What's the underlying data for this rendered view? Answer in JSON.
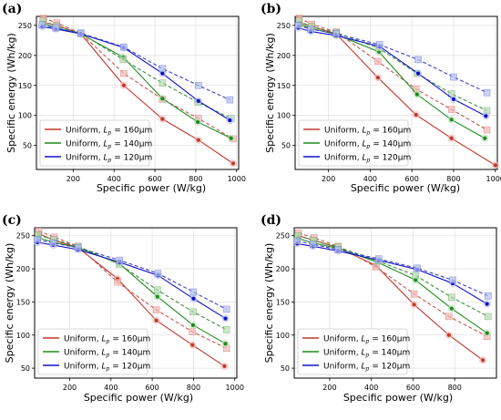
{
  "chart_data": [
    {
      "type": "line",
      "panel_label": "(a)",
      "xlabel": "Specific power (W/kg)",
      "ylabel": "Specific energy (Wh/kg)",
      "xlim": [
        20,
        1010
      ],
      "ylim": [
        10,
        265
      ],
      "xticks": [
        200,
        400,
        600,
        800,
        1000
      ],
      "yticks": [
        50,
        100,
        150,
        200,
        250
      ],
      "grid": true,
      "legend_position": "lower-left",
      "series": [
        {
          "name": "Uniform, Lp = 160μm",
          "legend_prefix": "Uniform, ",
          "legend_sym": "L",
          "legend_sub": "p",
          "legend_rest": " = 160μm",
          "x": [
            55,
            120,
            237,
            448,
            637,
            813,
            983
          ],
          "y": [
            255,
            250,
            236,
            150,
            94,
            59,
            20
          ],
          "dashed": false
        },
        {
          "name": "",
          "x": [
            55,
            120,
            237,
            448,
            637,
            813,
            983
          ],
          "y": [
            262,
            254,
            237,
            170,
            127,
            95,
            61
          ],
          "dashed": true
        },
        {
          "name": "Uniform, Lp = 140μm",
          "legend_prefix": "Uniform, ",
          "legend_sym": "L",
          "legend_sub": "p",
          "legend_rest": " = 140μm",
          "x": [
            52,
            118,
            237,
            445,
            637,
            810,
            973
          ],
          "y": [
            253,
            246,
            236,
            197,
            128,
            89,
            62
          ],
          "dashed": false
        },
        {
          "name": "",
          "x": [
            52,
            118,
            237,
            445,
            637,
            810,
            973
          ],
          "y": [
            257,
            249,
            237,
            193,
            154,
            122,
            95
          ],
          "dashed": true
        },
        {
          "name": "Uniform, Lp = 120μm",
          "legend_prefix": "Uniform, ",
          "legend_sym": "L",
          "legend_sub": "p",
          "legend_rest": " = 120μm",
          "x": [
            48,
            115,
            237,
            447,
            637,
            813,
            967
          ],
          "y": [
            248,
            244,
            236,
            213,
            170,
            124,
            92
          ],
          "dashed": false
        },
        {
          "name": "",
          "x": [
            48,
            115,
            237,
            447,
            637,
            813,
            967
          ],
          "y": [
            251,
            246,
            237,
            214,
            178,
            150,
            126
          ],
          "dashed": true
        }
      ]
    },
    {
      "type": "line",
      "panel_label": "(b)",
      "xlabel": "Specific power (W/kg)",
      "ylabel": "Specific energy (Wh/kg)",
      "xlim": [
        40,
        1010
      ],
      "ylim": [
        10,
        265
      ],
      "xticks": [
        200,
        400,
        600,
        800,
        1000
      ],
      "yticks": [
        50,
        100,
        150,
        200,
        250
      ],
      "grid": true,
      "legend_position": "lower-left",
      "series": [
        {
          "name": "Uniform, Lp = 160μm",
          "legend_prefix": "Uniform, ",
          "legend_sym": "L",
          "legend_sub": "p",
          "legend_rest": " = 160μm",
          "x": [
            60,
            120,
            237,
            437,
            620,
            790,
            1000
          ],
          "y": [
            255,
            248,
            236,
            163,
            101,
            62,
            17
          ],
          "dashed": false
        },
        {
          "name": "",
          "x": [
            60,
            120,
            237,
            437,
            620,
            790,
            960
          ],
          "y": [
            262,
            252,
            239,
            190,
            144,
            110,
            76
          ],
          "dashed": true
        },
        {
          "name": "Uniform, Lp = 140μm",
          "legend_prefix": "Uniform, ",
          "legend_sym": "L",
          "legend_sub": "p",
          "legend_rest": " = 140μm",
          "x": [
            58,
            118,
            237,
            442,
            625,
            790,
            950
          ],
          "y": [
            252,
            245,
            235,
            206,
            135,
            93,
            62
          ],
          "dashed": false
        },
        {
          "name": "",
          "x": [
            58,
            118,
            237,
            442,
            625,
            790,
            960
          ],
          "y": [
            257,
            248,
            238,
            212,
            170,
            136,
            108
          ],
          "dashed": true
        },
        {
          "name": "Uniform, Lp = 120μm",
          "legend_prefix": "Uniform, ",
          "legend_sym": "L",
          "legend_sub": "p",
          "legend_rest": " = 120μm",
          "x": [
            55,
            115,
            237,
            445,
            630,
            800,
            955
          ],
          "y": [
            246,
            240,
            233,
            215,
            170,
            127,
            99
          ],
          "dashed": false
        },
        {
          "name": "",
          "x": [
            55,
            115,
            237,
            445,
            630,
            800,
            960
          ],
          "y": [
            250,
            244,
            236,
            218,
            193,
            164,
            138
          ],
          "dashed": true
        }
      ]
    },
    {
      "type": "line",
      "panel_label": "(c)",
      "xlabel": "Specific power (W/kg)",
      "ylabel": "Specific energy (Wh/kg)",
      "xlim": [
        30,
        1010
      ],
      "ylim": [
        35,
        262
      ],
      "xticks": [
        200,
        400,
        600,
        800,
        1000
      ],
      "yticks": [
        50,
        100,
        150,
        200,
        250
      ],
      "grid": true,
      "legend_position": "lower-left",
      "series": [
        {
          "name": "Uniform, Lp = 160μm",
          "legend_prefix": "Uniform, ",
          "legend_sym": "L",
          "legend_sub": "p",
          "legend_rest": " = 160μm",
          "x": [
            50,
            125,
            240,
            432,
            620,
            795,
            950
          ],
          "y": [
            253,
            243,
            232,
            185,
            122,
            85,
            53
          ],
          "dashed": false
        },
        {
          "name": "",
          "x": [
            50,
            125,
            240,
            432,
            620,
            795,
            960
          ],
          "y": [
            257,
            248,
            234,
            180,
            138,
            105,
            80
          ],
          "dashed": true
        },
        {
          "name": "Uniform, Lp = 140μm",
          "legend_prefix": "Uniform, ",
          "legend_sym": "L",
          "legend_sub": "p",
          "legend_rest": " = 140μm",
          "x": [
            47,
            122,
            240,
            440,
            625,
            798,
            955
          ],
          "y": [
            247,
            240,
            232,
            208,
            158,
            115,
            87
          ],
          "dashed": false
        },
        {
          "name": "",
          "x": [
            47,
            122,
            240,
            440,
            625,
            798,
            960
          ],
          "y": [
            251,
            244,
            234,
            207,
            168,
            135,
            108
          ],
          "dashed": true
        },
        {
          "name": "Uniform, Lp = 120μm",
          "legend_prefix": "Uniform, ",
          "legend_sym": "L",
          "legend_sub": "p",
          "legend_rest": " = 120μm",
          "x": [
            44,
            120,
            240,
            442,
            628,
            800,
            955
          ],
          "y": [
            240,
            236,
            229,
            210,
            190,
            155,
            125
          ],
          "dashed": false
        },
        {
          "name": "",
          "x": [
            44,
            120,
            240,
            442,
            628,
            800,
            960
          ],
          "y": [
            244,
            239,
            232,
            213,
            193,
            165,
            139
          ],
          "dashed": true
        }
      ]
    },
    {
      "type": "line",
      "panel_label": "(d)",
      "xlabel": "Specific power (W/kg)",
      "ylabel": "Specific energy (Wh/kg)",
      "xlim": [
        30,
        1000
      ],
      "ylim": [
        35,
        262
      ],
      "xticks": [
        200,
        400,
        600,
        800
      ],
      "yticks": [
        50,
        100,
        150,
        200,
        250
      ],
      "grid": true,
      "legend_position": "lower-left",
      "series": [
        {
          "name": "Uniform, Lp = 160μm",
          "legend_prefix": "Uniform, ",
          "legend_sym": "L",
          "legend_sub": "p",
          "legend_rest": " = 160μm",
          "x": [
            50,
            125,
            240,
            422,
            605,
            772,
            935
          ],
          "y": [
            250,
            243,
            232,
            205,
            146,
            100,
            62
          ],
          "dashed": false
        },
        {
          "name": "",
          "x": [
            50,
            125,
            240,
            422,
            605,
            772,
            955
          ],
          "y": [
            254,
            247,
            234,
            203,
            162,
            128,
            98
          ],
          "dashed": true
        },
        {
          "name": "Uniform, Lp = 140μm",
          "legend_prefix": "Uniform, ",
          "legend_sym": "L",
          "legend_sub": "p",
          "legend_rest": " = 140μm",
          "x": [
            47,
            122,
            240,
            430,
            612,
            785,
            955
          ],
          "y": [
            246,
            239,
            231,
            210,
            183,
            140,
            103
          ],
          "dashed": false
        },
        {
          "name": "",
          "x": [
            47,
            122,
            240,
            430,
            612,
            785,
            960
          ],
          "y": [
            250,
            243,
            233,
            212,
            190,
            157,
            128
          ],
          "dashed": true
        },
        {
          "name": "Uniform, Lp = 120μm",
          "legend_prefix": "Uniform, ",
          "legend_sym": "L",
          "legend_sub": "p",
          "legend_rest": " = 120μm",
          "x": [
            44,
            120,
            240,
            435,
            620,
            790,
            955
          ],
          "y": [
            238,
            234,
            227,
            213,
            199,
            178,
            147
          ],
          "dashed": false
        },
        {
          "name": "",
          "x": [
            44,
            120,
            240,
            435,
            620,
            790,
            960
          ],
          "y": [
            242,
            237,
            229,
            215,
            201,
            183,
            159
          ],
          "dashed": true
        }
      ]
    }
  ],
  "colors": {
    "uniform_160": "#c0392b",
    "uniform_140": "#1e8c1e",
    "uniform_120": "#1010c8",
    "dashed_160": "#c25a50",
    "dashed_140": "#3f8f3f",
    "dashed_120": "#3a3fcf",
    "marker_halo_160": "#f4b6b6",
    "marker_halo_140": "#b9dcb5",
    "marker_halo_120": "#b6c0f0",
    "grid": "#e3e3e3"
  }
}
